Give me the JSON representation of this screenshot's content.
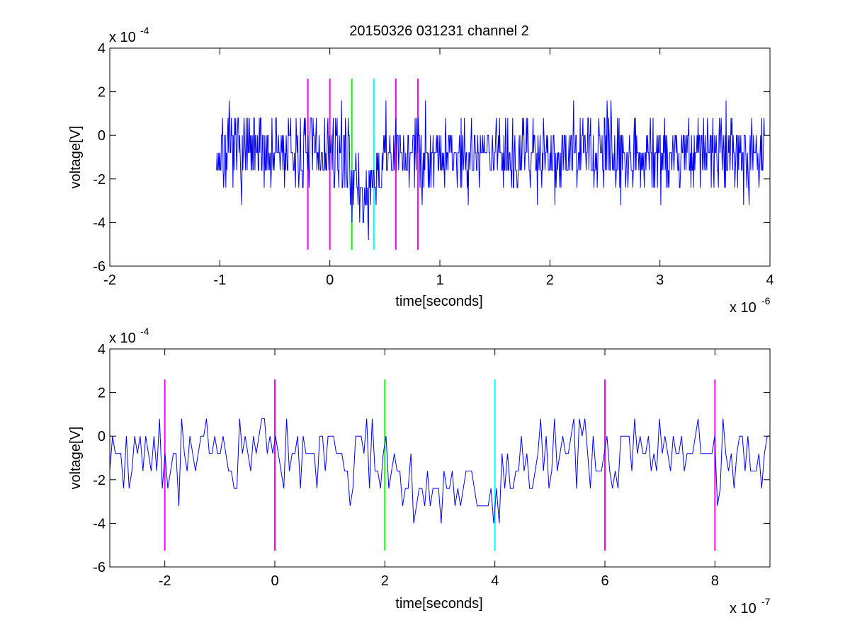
{
  "figure": {
    "title": "20150326 031231 channel 2"
  },
  "chart_data": [
    {
      "type": "line",
      "xlabel": "time[seconds]",
      "ylabel": "voltage[V]",
      "x_exponent_label": "x 10",
      "x_exponent": "-6",
      "y_exponent_label": "x 10",
      "y_exponent": "-4",
      "x_scale": 1e-06,
      "y_scale": 0.0001,
      "xlim": [
        -2,
        4
      ],
      "ylim": [
        -6,
        4
      ],
      "xticks": [
        -2,
        -1,
        0,
        1,
        2,
        3,
        4
      ],
      "yticks": [
        -6,
        -4,
        -2,
        0,
        2,
        4
      ],
      "signal": {
        "color": "#0000ff",
        "x_range": [
          -1.03,
          3.95
        ],
        "num_points": 1000,
        "seed": 7,
        "baseline": -0.8,
        "quantum": 0.8,
        "dip": {
          "x_start": 0.18,
          "x_end": 0.48,
          "depth": -2.8
        }
      },
      "markers": [
        {
          "x": -0.2,
          "ymin": -5.25,
          "ymax": 2.6,
          "color": "#ff00ff"
        },
        {
          "x": 0.0,
          "ymin": -5.25,
          "ymax": 2.6,
          "color": "#ff00ff"
        },
        {
          "x": 0.2,
          "ymin": -5.25,
          "ymax": 2.6,
          "color": "#00ff00"
        },
        {
          "x": 0.4,
          "ymin": -5.25,
          "ymax": 2.6,
          "color": "#00ffff"
        },
        {
          "x": 0.6,
          "ymin": -5.25,
          "ymax": 2.6,
          "color": "#ff00ff"
        },
        {
          "x": 0.8,
          "ymin": -5.25,
          "ymax": 2.6,
          "color": "#ff00ff"
        }
      ]
    },
    {
      "type": "line",
      "xlabel": "time[seconds]",
      "ylabel": "voltage[V]",
      "x_exponent_label": "x 10",
      "x_exponent": "-7",
      "y_exponent_label": "x 10",
      "y_exponent": "-4",
      "x_scale": 1e-07,
      "y_scale": 0.0001,
      "xlim": [
        -3,
        9
      ],
      "ylim": [
        -6,
        4
      ],
      "xticks": [
        -2,
        0,
        2,
        4,
        6,
        8
      ],
      "yticks": [
        -6,
        -4,
        -2,
        0,
        2,
        4
      ],
      "signal": {
        "color": "#0000ff",
        "x_range": [
          -3,
          9
        ],
        "num_points": 240,
        "seed": 19,
        "baseline": -0.8,
        "quantum": 0.8,
        "dip": {
          "x_start": 1.75,
          "x_end": 4.8,
          "depth": -2.8
        }
      },
      "markers": [
        {
          "x": -2,
          "ymin": -5.25,
          "ymax": 2.6,
          "color": "#ff00ff"
        },
        {
          "x": 0,
          "ymin": -5.25,
          "ymax": 2.6,
          "color": "#ff00ff"
        },
        {
          "x": 2,
          "ymin": -5.25,
          "ymax": 2.6,
          "color": "#00ff00"
        },
        {
          "x": 4,
          "ymin": -5.25,
          "ymax": 2.6,
          "color": "#00ffff"
        },
        {
          "x": 6,
          "ymin": -5.25,
          "ymax": 2.6,
          "color": "#ff00ff"
        },
        {
          "x": 8,
          "ymin": -5.25,
          "ymax": 2.6,
          "color": "#ff00ff"
        }
      ]
    }
  ]
}
